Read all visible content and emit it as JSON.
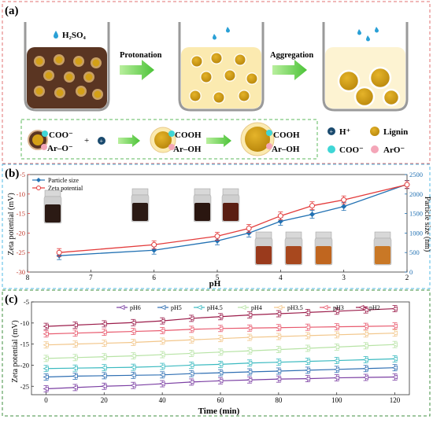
{
  "panel_a": {
    "label": "(a)",
    "acid_label": "H₂SO₄",
    "step1_label": "Protonation",
    "step2_label": "Aggregation",
    "legend": {
      "proton": "H⁺",
      "lignin": "Lignin",
      "coo": "COO⁻",
      "aro": "ArO⁻"
    },
    "scheme": {
      "coo_minus": "COO⁻",
      "aro_minus": "Ar–O⁻",
      "plus": "+",
      "cooh": "COOH",
      "aroh": "Ar–OH",
      "cooh2": "COOH",
      "aroh2": "Ar–OH"
    },
    "colors": {
      "frame": "#e07070",
      "dark_liquid": "#5a3522",
      "light_liquid": "#fbeab0",
      "lighter_liquid": "#fdf3d2",
      "lignin": "#d4a017",
      "coo": "#3fd6d6",
      "aro": "#f4a6b8",
      "arrow": "#5cc94a"
    }
  },
  "panel_b": {
    "label": "(b)",
    "colors": {
      "frame": "#4fb8e6",
      "size": "#2271b3",
      "zeta": "#e33b3b"
    },
    "chart_data": {
      "type": "line",
      "xlabel": "pH",
      "ylabel_left": "Zeta potential (mV)",
      "ylabel_right": "Particle size (nm)",
      "x_ticks": [
        8,
        7,
        6,
        5,
        4,
        3,
        2
      ],
      "x_reversed": true,
      "xlim": [
        8,
        2
      ],
      "left_ylim": [
        -30,
        -5
      ],
      "left_ticks": [
        -30,
        -25,
        -20,
        -15,
        -10,
        -5
      ],
      "right_ylim": [
        0,
        2500
      ],
      "right_ticks": [
        0,
        500,
        1000,
        1500,
        2000,
        2500
      ],
      "legend": [
        "Particle size",
        "Zeta potential"
      ],
      "legend_position": "top-left",
      "series": [
        {
          "name": "Particle size",
          "axis": "right",
          "x": [
            7.5,
            6,
            5,
            4.5,
            4,
            3.5,
            3,
            2
          ],
          "y": [
            420,
            560,
            800,
            1000,
            1300,
            1480,
            1680,
            2250
          ]
        },
        {
          "name": "Zeta potential",
          "axis": "left",
          "x": [
            7.5,
            6,
            5,
            4.5,
            4,
            3.5,
            3,
            2
          ],
          "y": [
            -25.0,
            -23.0,
            -20.8,
            -18.8,
            -15.6,
            -13.0,
            -11.5,
            -7.6
          ]
        }
      ]
    }
  },
  "panel_c": {
    "label": "(c)",
    "colors": {
      "frame": "#3f8f3f"
    },
    "chart_data": {
      "type": "line",
      "xlabel": "Time (min)",
      "ylabel": "Zeta potential (mV)",
      "x_ticks": [
        0,
        20,
        40,
        60,
        80,
        100,
        120
      ],
      "xlim": [
        -5,
        125
      ],
      "ylim": [
        -27,
        -5
      ],
      "y_ticks": [
        -25,
        -20,
        -15,
        -10,
        -5
      ],
      "legend_position": "top",
      "x": [
        0,
        10,
        20,
        30,
        40,
        50,
        60,
        70,
        80,
        90,
        100,
        110,
        120
      ],
      "series": [
        {
          "name": "pH6",
          "color": "#7b3fa3",
          "y": [
            -25.6,
            -25.3,
            -25.0,
            -24.8,
            -24.4,
            -24.0,
            -23.7,
            -23.5,
            -23.3,
            -23.2,
            -23.0,
            -22.9,
            -22.8
          ]
        },
        {
          "name": "pH5",
          "color": "#2f6fb3",
          "y": [
            -22.8,
            -22.6,
            -22.5,
            -22.4,
            -22.3,
            -22.0,
            -21.8,
            -21.6,
            -21.4,
            -21.2,
            -21.0,
            -20.8,
            -20.6
          ]
        },
        {
          "name": "pH4.5",
          "color": "#3bbac0",
          "y": [
            -20.8,
            -20.7,
            -20.6,
            -20.5,
            -20.3,
            -20.0,
            -19.8,
            -19.5,
            -19.3,
            -19.1,
            -18.9,
            -18.7,
            -18.5
          ]
        },
        {
          "name": "pH4",
          "color": "#b7e3a5",
          "y": [
            -18.4,
            -18.2,
            -18.0,
            -17.8,
            -17.5,
            -17.2,
            -16.9,
            -16.6,
            -16.3,
            -16.0,
            -15.7,
            -15.4,
            -15.1
          ]
        },
        {
          "name": "pH3.5",
          "color": "#f2c68a",
          "y": [
            -15.2,
            -15.0,
            -14.8,
            -14.6,
            -14.3,
            -14.0,
            -13.7,
            -13.4,
            -13.2,
            -13.0,
            -12.8,
            -12.6,
            -12.4
          ]
        },
        {
          "name": "pH3",
          "color": "#e85a6e",
          "y": [
            -12.6,
            -12.4,
            -12.2,
            -12.0,
            -11.8,
            -11.5,
            -11.3,
            -11.2,
            -11.1,
            -11.0,
            -10.9,
            -10.8,
            -10.7
          ]
        },
        {
          "name": "pH2",
          "color": "#9b1c4a",
          "y": [
            -10.8,
            -10.5,
            -10.2,
            -9.9,
            -9.5,
            -8.9,
            -8.5,
            -8.1,
            -7.8,
            -7.5,
            -7.2,
            -6.9,
            -6.6
          ]
        }
      ]
    }
  }
}
